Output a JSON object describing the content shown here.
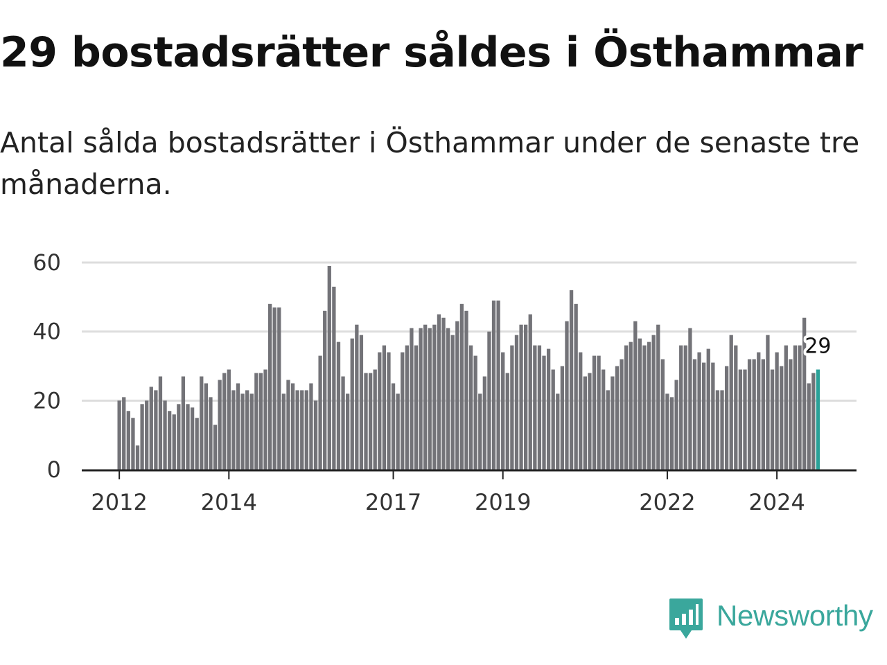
{
  "title": "29 bostadsrätter såldes i Östhammar",
  "subtitle": "Antal sålda bostadsrätter i Östhammar under de senaste tre månaderna.",
  "brand": {
    "name": "Newsworthy",
    "color": "#3aa79c",
    "icon": "newsworthy-logo-icon"
  },
  "colors": {
    "bar": "#737378",
    "highlight": "#2aa198",
    "grid": "#dddddd",
    "axis": "#222222"
  },
  "chart_data": {
    "type": "bar",
    "title": "Antal sålda bostadsrätter i Östhammar",
    "xlabel": "",
    "ylabel": "",
    "ylim": [
      0,
      60
    ],
    "yticks": [
      0,
      20,
      40,
      60
    ],
    "xticks": [
      {
        "index": 0,
        "label": "2012"
      },
      {
        "index": 24,
        "label": "2014"
      },
      {
        "index": 60,
        "label": "2017"
      },
      {
        "index": 84,
        "label": "2019"
      },
      {
        "index": 120,
        "label": "2022"
      },
      {
        "index": 144,
        "label": "2024"
      }
    ],
    "start": "2012-01",
    "frequency": "monthly",
    "values": [
      20,
      21,
      17,
      15,
      7,
      19,
      20,
      24,
      23,
      27,
      20,
      17,
      16,
      19,
      27,
      19,
      18,
      15,
      27,
      25,
      21,
      13,
      26,
      28,
      29,
      23,
      25,
      22,
      23,
      22,
      28,
      28,
      29,
      48,
      47,
      47,
      22,
      26,
      25,
      23,
      23,
      23,
      25,
      20,
      33,
      46,
      59,
      53,
      37,
      27,
      22,
      38,
      42,
      39,
      28,
      28,
      29,
      34,
      36,
      34,
      25,
      22,
      34,
      36,
      41,
      36,
      41,
      42,
      41,
      42,
      45,
      44,
      41,
      39,
      43,
      48,
      46,
      36,
      33,
      22,
      27,
      40,
      49,
      49,
      34,
      28,
      36,
      39,
      42,
      42,
      45,
      36,
      36,
      33,
      35,
      29,
      22,
      30,
      43,
      52,
      48,
      34,
      27,
      28,
      33,
      33,
      29,
      23,
      27,
      30,
      32,
      36,
      37,
      43,
      38,
      36,
      37,
      39,
      42,
      32,
      22,
      21,
      26,
      36,
      36,
      41,
      32,
      34,
      31,
      35,
      31,
      23,
      23,
      30,
      39,
      36,
      29,
      29,
      32,
      32,
      34,
      32,
      39,
      29,
      34,
      30,
      36,
      32,
      36,
      36,
      44,
      25,
      28,
      29
    ],
    "highlight_index": 153,
    "annotation": "29"
  }
}
